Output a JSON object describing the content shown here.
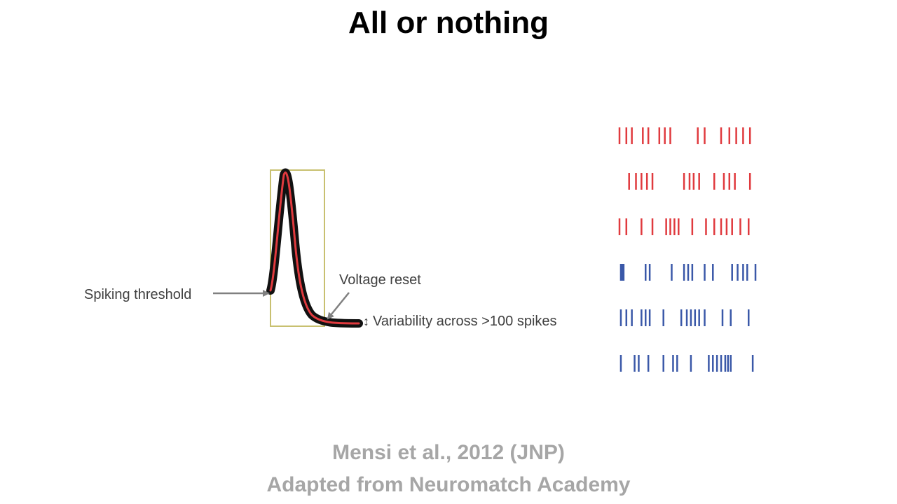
{
  "slide": {
    "title": "All or nothing",
    "credit_line_1": "Mensi et al., 2012 (JNP)",
    "credit_line_2": "Adapted from Neuromatch Academy"
  },
  "waveform": {
    "label_threshold": "Spiking threshold",
    "label_reset": "Voltage reset",
    "label_variability": "Variability across >100 spikes",
    "variability_arrow_glyph": "↕",
    "colors": {
      "trace": "#e03a3e",
      "traces_bg": "#111111",
      "box": "#c8c070",
      "arrow": "#808080"
    }
  },
  "raster": {
    "trains": [
      {
        "color": "#e03a3e",
        "spikes": [
          0,
          5,
          9,
          17,
          21,
          29,
          33,
          37,
          57,
          62,
          74,
          80,
          85,
          90,
          95
        ]
      },
      {
        "color": "#e03a3e",
        "spikes": [
          7,
          12,
          16,
          20,
          24,
          47,
          51,
          54,
          58,
          69,
          76,
          80,
          84,
          95
        ]
      },
      {
        "color": "#e03a3e",
        "spikes": [
          0,
          5,
          16,
          24,
          34,
          37,
          40,
          43,
          53,
          63,
          69,
          74,
          78,
          82,
          88,
          94
        ]
      },
      {
        "color": "#3a58a8",
        "spikes": [
          1,
          2,
          3,
          19,
          22,
          38,
          47,
          50,
          53,
          62,
          68,
          82,
          86,
          90,
          93,
          99
        ]
      },
      {
        "color": "#3a58a8",
        "spikes": [
          1,
          5,
          9,
          16,
          19,
          22,
          32,
          45,
          49,
          52,
          55,
          58,
          62,
          75,
          81,
          94
        ]
      },
      {
        "color": "#3a58a8",
        "spikes": [
          1,
          11,
          14,
          21,
          32,
          39,
          42,
          52,
          65,
          68,
          71,
          74,
          77,
          79,
          81,
          97
        ]
      }
    ]
  }
}
